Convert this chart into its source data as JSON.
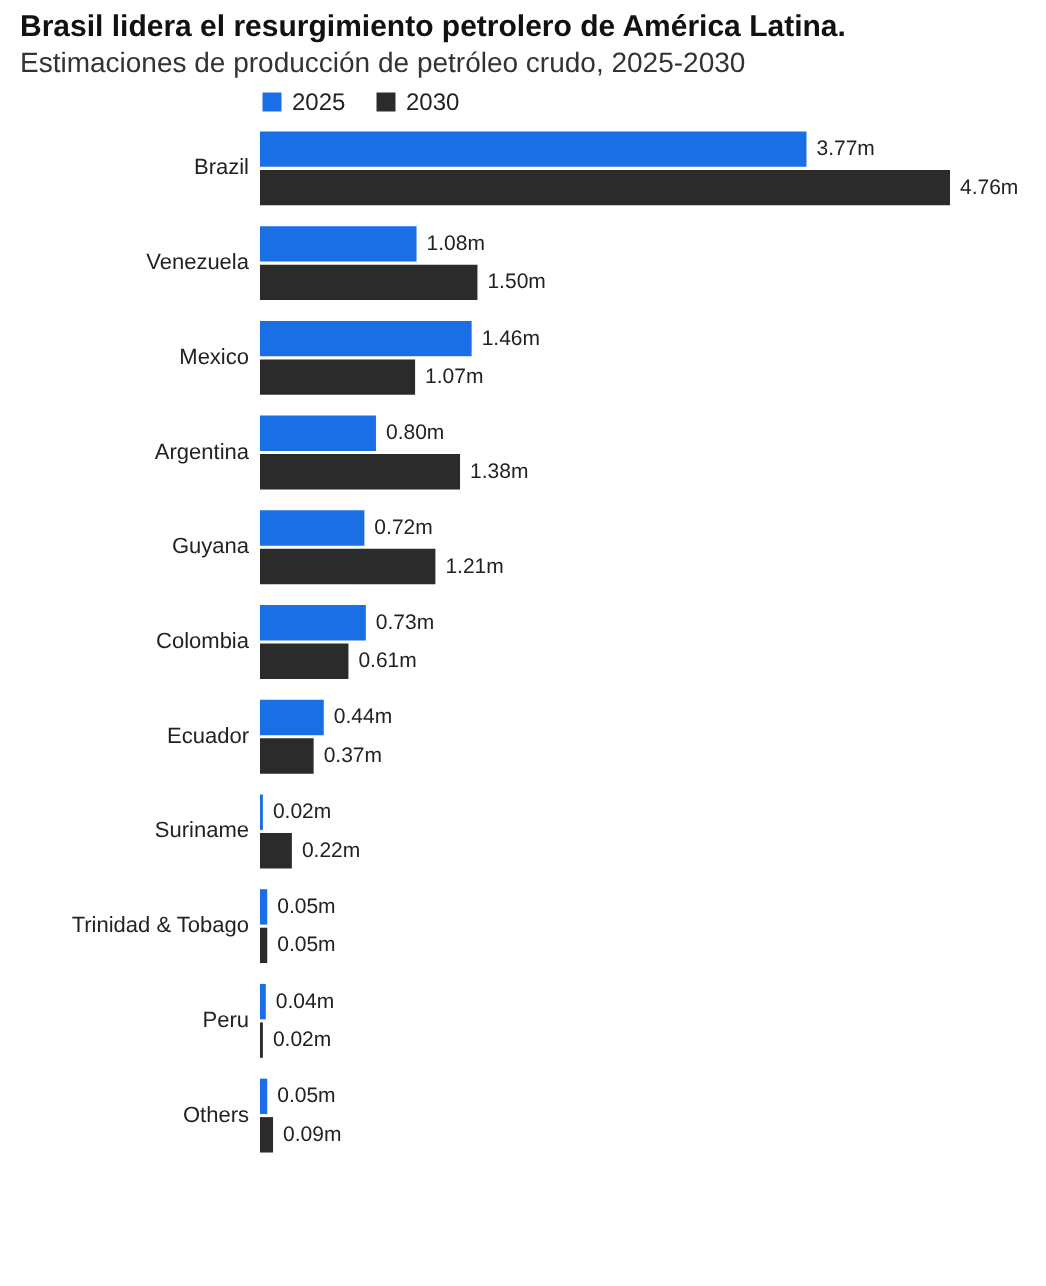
{
  "chart_data": {
    "type": "bar",
    "orientation": "horizontal",
    "title": "Brasil lidera el resurgimiento petrolero de América Latina.",
    "subtitle": "Estimaciones de producción de petróleo crudo, 2025-2030",
    "categories": [
      "Brazil",
      "Venezuela",
      "Mexico",
      "Argentina",
      "Guyana",
      "Colombia",
      "Ecuador",
      "Suriname",
      "Trinidad & Tobago",
      "Peru",
      "Others"
    ],
    "series": [
      {
        "name": "2025",
        "color": "#1a6fe6",
        "values": [
          3.77,
          1.08,
          1.46,
          0.8,
          0.72,
          0.73,
          0.44,
          0.02,
          0.05,
          0.04,
          0.05
        ],
        "value_labels": [
          "3.77m",
          "1.08m",
          "1.46m",
          "0.80m",
          "0.72m",
          "0.73m",
          "0.44m",
          "0.02m",
          "0.05m",
          "0.04m",
          "0.05m"
        ]
      },
      {
        "name": "2030",
        "color": "#2b2b2b",
        "values": [
          4.76,
          1.5,
          1.07,
          1.38,
          1.21,
          0.61,
          0.37,
          0.22,
          0.05,
          0.02,
          0.09
        ],
        "value_labels": [
          "4.76m",
          "1.50m",
          "1.07m",
          "1.38m",
          "1.21m",
          "0.61m",
          "0.37m",
          "0.22m",
          "0.05m",
          "0.02m",
          "0.09m"
        ]
      }
    ],
    "legend": "top left",
    "grid": false
  }
}
